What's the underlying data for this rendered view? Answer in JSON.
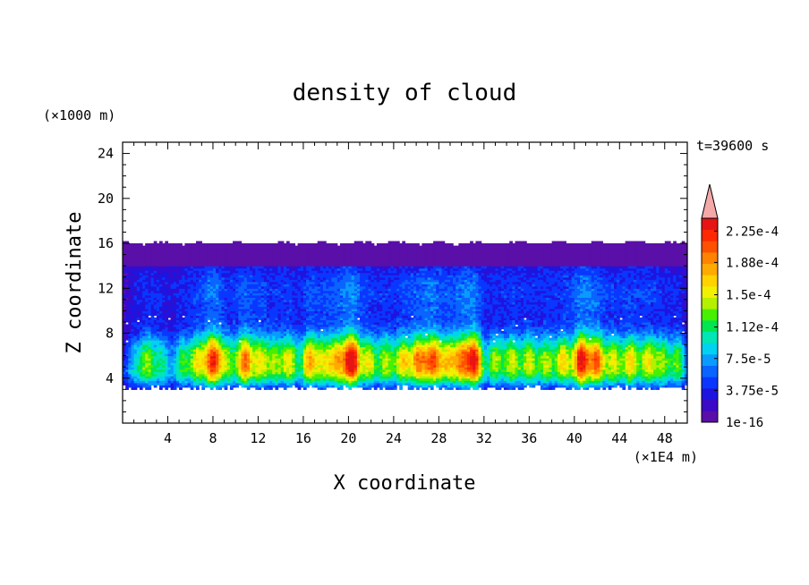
{
  "chart_data": {
    "type": "heatmap",
    "title": "density of cloud",
    "xlabel": "X coordinate",
    "ylabel": "Z coordinate",
    "x_unit": "(×1E4 m)",
    "y_unit": "(×1000 m)",
    "time_label": "t=39600 s",
    "xlim": [
      0,
      50
    ],
    "ylim": [
      0,
      25
    ],
    "x_ticks": [
      4,
      8,
      12,
      16,
      20,
      24,
      28,
      32,
      36,
      40,
      44,
      48
    ],
    "x_tick_labels": [
      "4",
      "8",
      "12",
      "16",
      "20",
      "24",
      "28",
      "32",
      "36",
      "40",
      "44",
      "48"
    ],
    "y_ticks": [
      4,
      8,
      12,
      16,
      20,
      24
    ],
    "y_tick_labels": [
      "4",
      "8",
      "12",
      "16",
      "20",
      "24"
    ],
    "cloud_base": 2.8,
    "anvil_top": 16.2,
    "colorbar": {
      "min": 1e-16,
      "max": 0.00024,
      "tick_labels": [
        "1e-16",
        "3.75e-5",
        "7.5e-5",
        "1.12e-4",
        "1.5e-4",
        "1.88e-4",
        "2.25e-4"
      ],
      "tick_values": [
        0,
        3.75e-05,
        7.5e-05,
        0.000112,
        0.00015,
        0.000188,
        0.000225
      ],
      "colors": [
        "#5a0fa8",
        "#3a0ac8",
        "#1e14e0",
        "#0a37ff",
        "#0a64ff",
        "#0a9bff",
        "#00d2f0",
        "#00e6b4",
        "#00e650",
        "#46f000",
        "#b4f000",
        "#f0f000",
        "#ffd200",
        "#ffaa00",
        "#ff8200",
        "#ff5000",
        "#ff2800",
        "#e61414"
      ],
      "overflow_color": "#f4a8a8"
    },
    "convective_cores": [
      {
        "x": 1.0,
        "peak": 0.25
      },
      {
        "x": 2.2,
        "peak": 0.45
      },
      {
        "x": 3.5,
        "peak": 0.35
      },
      {
        "x": 5.2,
        "peak": 0.4
      },
      {
        "x": 6.6,
        "peak": 0.55
      },
      {
        "x": 8.0,
        "peak": 0.85
      },
      {
        "x": 9.3,
        "peak": 0.45
      },
      {
        "x": 10.8,
        "peak": 0.75
      },
      {
        "x": 12.2,
        "peak": 0.55
      },
      {
        "x": 13.5,
        "peak": 0.45
      },
      {
        "x": 14.8,
        "peak": 0.55
      },
      {
        "x": 16.5,
        "peak": 0.65
      },
      {
        "x": 17.8,
        "peak": 0.5
      },
      {
        "x": 19.0,
        "peak": 0.6
      },
      {
        "x": 20.3,
        "peak": 0.95
      },
      {
        "x": 21.8,
        "peak": 0.55
      },
      {
        "x": 23.3,
        "peak": 0.5
      },
      {
        "x": 24.8,
        "peak": 0.6
      },
      {
        "x": 26.2,
        "peak": 0.7
      },
      {
        "x": 27.5,
        "peak": 0.75
      },
      {
        "x": 28.8,
        "peak": 0.55
      },
      {
        "x": 30.0,
        "peak": 0.65
      },
      {
        "x": 31.2,
        "peak": 0.85
      },
      {
        "x": 33.0,
        "peak": 0.5
      },
      {
        "x": 34.5,
        "peak": 0.55
      },
      {
        "x": 36.0,
        "peak": 0.55
      },
      {
        "x": 37.5,
        "peak": 0.5
      },
      {
        "x": 39.0,
        "peak": 0.6
      },
      {
        "x": 40.6,
        "peak": 0.9
      },
      {
        "x": 42.0,
        "peak": 0.75
      },
      {
        "x": 43.5,
        "peak": 0.55
      },
      {
        "x": 45.0,
        "peak": 0.6
      },
      {
        "x": 46.5,
        "peak": 0.55
      },
      {
        "x": 47.8,
        "peak": 0.45
      },
      {
        "x": 49.2,
        "peak": 0.45
      }
    ]
  }
}
